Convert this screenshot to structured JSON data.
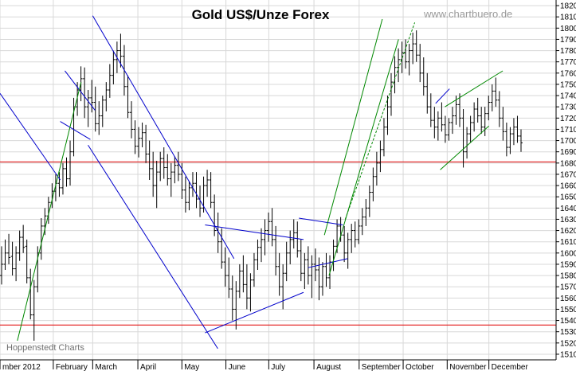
{
  "chart_data": {
    "type": "ohlc",
    "title": "Gold US$/Unze Forex",
    "watermark": "www.chartbuero.de",
    "source": "Hoppenstedt Charts",
    "ylim": [
      1505,
      1825
    ],
    "y_ticks": [
      1510,
      1520,
      1530,
      1540,
      1550,
      1560,
      1570,
      1580,
      1590,
      1600,
      1610,
      1620,
      1630,
      1640,
      1650,
      1660,
      1670,
      1680,
      1690,
      1700,
      1710,
      1720,
      1730,
      1740,
      1750,
      1760,
      1770,
      1780,
      1790,
      1800,
      1810,
      1820
    ],
    "x_domain": [
      0,
      24
    ],
    "x_months": [
      {
        "label": "mber 2012",
        "x": 0
      },
      {
        "label": "February",
        "x": 2.3
      },
      {
        "label": "March",
        "x": 4.0
      },
      {
        "label": "April",
        "x": 5.95
      },
      {
        "label": "May",
        "x": 7.85
      },
      {
        "label": "June",
        "x": 9.75
      },
      {
        "label": "July",
        "x": 11.6
      },
      {
        "label": "August",
        "x": 13.55
      },
      {
        "label": "September",
        "x": 15.5
      },
      {
        "label": "October",
        "x": 17.4
      },
      {
        "label": "November",
        "x": 19.3
      },
      {
        "label": "December",
        "x": 21.1
      }
    ],
    "horizontal_lines": [
      {
        "name": "resistance-line",
        "y": 1681,
        "color": "#e00000"
      },
      {
        "name": "support-line",
        "y": 1536,
        "color": "#e00000"
      }
    ],
    "trendlines": [
      {
        "color": "#0000cc",
        "dash": false,
        "from": [
          0,
          1742
        ],
        "to": [
          2.6,
          1665
        ]
      },
      {
        "color": "#0000cc",
        "dash": false,
        "from": [
          4.0,
          1811
        ],
        "to": [
          10.1,
          1595
        ]
      },
      {
        "color": "#0000cc",
        "dash": false,
        "from": [
          3.8,
          1696
        ],
        "to": [
          9.4,
          1515
        ]
      },
      {
        "color": "#0000cc",
        "dash": false,
        "from": [
          2.8,
          1762
        ],
        "to": [
          4.1,
          1727
        ]
      },
      {
        "color": "#0000cc",
        "dash": false,
        "from": [
          2.6,
          1717
        ],
        "to": [
          3.9,
          1701
        ]
      },
      {
        "color": "#0000cc",
        "dash": false,
        "from": [
          8.85,
          1625
        ],
        "to": [
          13.1,
          1612
        ]
      },
      {
        "color": "#0000cc",
        "dash": false,
        "from": [
          8.85,
          1529
        ],
        "to": [
          13.1,
          1565
        ]
      },
      {
        "color": "#0000cc",
        "dash": false,
        "from": [
          12.9,
          1631
        ],
        "to": [
          14.8,
          1625
        ]
      },
      {
        "color": "#0000cc",
        "dash": false,
        "from": [
          13.3,
          1587
        ],
        "to": [
          15.0,
          1595
        ]
      },
      {
        "color": "#0000cc",
        "dash": false,
        "from": [
          18.8,
          1733
        ],
        "to": [
          19.4,
          1746
        ]
      },
      {
        "color": "#008800",
        "dash": false,
        "from": [
          0.75,
          1522
        ],
        "to": [
          3.5,
          1752
        ]
      },
      {
        "color": "#008800",
        "dash": false,
        "from": [
          14.0,
          1616
        ],
        "to": [
          16.5,
          1808
        ]
      },
      {
        "color": "#008800",
        "dash": false,
        "from": [
          14.2,
          1580
        ],
        "to": [
          17.2,
          1790
        ]
      },
      {
        "color": "#008800",
        "dash": true,
        "from": [
          14.9,
          1630
        ],
        "to": [
          17.9,
          1805
        ]
      },
      {
        "color": "#008800",
        "dash": false,
        "from": [
          19.0,
          1674
        ],
        "to": [
          21.1,
          1713
        ]
      },
      {
        "color": "#008800",
        "dash": false,
        "from": [
          19.2,
          1730
        ],
        "to": [
          21.7,
          1762
        ]
      }
    ],
    "bars": [
      [
        1580,
        1606,
        1572,
        1590
      ],
      [
        1590,
        1612,
        1585,
        1600
      ],
      [
        1600,
        1617,
        1590,
        1596
      ],
      [
        1597,
        1610,
        1580,
        1586
      ],
      [
        1586,
        1606,
        1575,
        1600
      ],
      [
        1600,
        1620,
        1593,
        1614
      ],
      [
        1614,
        1625,
        1600,
        1605
      ],
      [
        1606,
        1612,
        1573,
        1578
      ],
      [
        1578,
        1586,
        1541,
        1545
      ],
      [
        1545,
        1576,
        1522,
        1570
      ],
      [
        1570,
        1606,
        1565,
        1600
      ],
      [
        1600,
        1631,
        1594,
        1624
      ],
      [
        1624,
        1640,
        1616,
        1633
      ],
      [
        1633,
        1650,
        1626,
        1645
      ],
      [
        1645,
        1662,
        1640,
        1655
      ],
      [
        1655,
        1670,
        1646,
        1662
      ],
      [
        1662,
        1672,
        1650,
        1658
      ],
      [
        1658,
        1680,
        1652,
        1675
      ],
      [
        1675,
        1685,
        1659,
        1666
      ],
      [
        1666,
        1700,
        1660,
        1690
      ],
      [
        1690,
        1738,
        1686,
        1730
      ],
      [
        1730,
        1752,
        1722,
        1745
      ],
      [
        1745,
        1766,
        1735,
        1755
      ],
      [
        1755,
        1765,
        1720,
        1730
      ],
      [
        1730,
        1745,
        1712,
        1738
      ],
      [
        1738,
        1754,
        1725,
        1734
      ],
      [
        1734,
        1748,
        1708,
        1715
      ],
      [
        1715,
        1735,
        1705,
        1722
      ],
      [
        1722,
        1740,
        1712,
        1736
      ],
      [
        1736,
        1752,
        1726,
        1745
      ],
      [
        1745,
        1768,
        1738,
        1758
      ],
      [
        1758,
        1780,
        1750,
        1772
      ],
      [
        1772,
        1788,
        1760,
        1780
      ],
      [
        1780,
        1795,
        1765,
        1775
      ],
      [
        1775,
        1785,
        1740,
        1748
      ],
      [
        1748,
        1758,
        1720,
        1725
      ],
      [
        1725,
        1735,
        1702,
        1710
      ],
      [
        1710,
        1718,
        1688,
        1695
      ],
      [
        1695,
        1712,
        1685,
        1702
      ],
      [
        1702,
        1716,
        1694,
        1707
      ],
      [
        1707,
        1714,
        1680,
        1688
      ],
      [
        1688,
        1700,
        1665,
        1675
      ],
      [
        1675,
        1690,
        1650,
        1660
      ],
      [
        1660,
        1682,
        1640,
        1672
      ],
      [
        1672,
        1690,
        1664,
        1684
      ],
      [
        1684,
        1694,
        1666,
        1676
      ],
      [
        1676,
        1688,
        1660,
        1666
      ],
      [
        1666,
        1680,
        1650,
        1672
      ],
      [
        1672,
        1686,
        1662,
        1678
      ],
      [
        1678,
        1690,
        1664,
        1670
      ],
      [
        1670,
        1680,
        1648,
        1656
      ],
      [
        1656,
        1668,
        1636,
        1645
      ],
      [
        1645,
        1664,
        1638,
        1658
      ],
      [
        1658,
        1672,
        1650,
        1662
      ],
      [
        1662,
        1672,
        1640,
        1648
      ],
      [
        1648,
        1660,
        1632,
        1640
      ],
      [
        1640,
        1668,
        1636,
        1660
      ],
      [
        1660,
        1674,
        1650,
        1665
      ],
      [
        1665,
        1672,
        1640,
        1645
      ],
      [
        1645,
        1652,
        1615,
        1620
      ],
      [
        1620,
        1636,
        1600,
        1610
      ],
      [
        1610,
        1622,
        1586,
        1592
      ],
      [
        1592,
        1605,
        1570,
        1580
      ],
      [
        1580,
        1596,
        1560,
        1568
      ],
      [
        1568,
        1580,
        1540,
        1550
      ],
      [
        1550,
        1575,
        1532,
        1566
      ],
      [
        1566,
        1590,
        1560,
        1584
      ],
      [
        1584,
        1598,
        1565,
        1572
      ],
      [
        1572,
        1590,
        1550,
        1560
      ],
      [
        1560,
        1582,
        1548,
        1576
      ],
      [
        1576,
        1600,
        1570,
        1594
      ],
      [
        1594,
        1612,
        1585,
        1605
      ],
      [
        1605,
        1622,
        1592,
        1612
      ],
      [
        1612,
        1630,
        1598,
        1620
      ],
      [
        1620,
        1636,
        1610,
        1628
      ],
      [
        1628,
        1640,
        1606,
        1612
      ],
      [
        1612,
        1624,
        1580,
        1588
      ],
      [
        1588,
        1600,
        1562,
        1570
      ],
      [
        1570,
        1590,
        1550,
        1582
      ],
      [
        1582,
        1610,
        1575,
        1600
      ],
      [
        1600,
        1620,
        1590,
        1612
      ],
      [
        1612,
        1630,
        1604,
        1618
      ],
      [
        1618,
        1628,
        1596,
        1602
      ],
      [
        1602,
        1612,
        1575,
        1582
      ],
      [
        1582,
        1600,
        1568,
        1594
      ],
      [
        1594,
        1606,
        1572,
        1580
      ],
      [
        1580,
        1598,
        1560,
        1590
      ],
      [
        1590,
        1604,
        1575,
        1585
      ],
      [
        1585,
        1596,
        1558,
        1570
      ],
      [
        1570,
        1592,
        1562,
        1588
      ],
      [
        1588,
        1600,
        1570,
        1578
      ],
      [
        1578,
        1598,
        1568,
        1592
      ],
      [
        1592,
        1612,
        1584,
        1606
      ],
      [
        1606,
        1630,
        1600,
        1624
      ],
      [
        1624,
        1632,
        1610,
        1616
      ],
      [
        1616,
        1624,
        1592,
        1600
      ],
      [
        1600,
        1618,
        1586,
        1612
      ],
      [
        1612,
        1626,
        1600,
        1620
      ],
      [
        1620,
        1628,
        1605,
        1612
      ],
      [
        1612,
        1630,
        1608,
        1624
      ],
      [
        1624,
        1640,
        1616,
        1632
      ],
      [
        1632,
        1648,
        1624,
        1640
      ],
      [
        1640,
        1660,
        1632,
        1654
      ],
      [
        1654,
        1676,
        1646,
        1668
      ],
      [
        1668,
        1690,
        1660,
        1680
      ],
      [
        1680,
        1700,
        1672,
        1692
      ],
      [
        1692,
        1720,
        1686,
        1712
      ],
      [
        1712,
        1740,
        1705,
        1730
      ],
      [
        1730,
        1760,
        1722,
        1752
      ],
      [
        1752,
        1775,
        1742,
        1765
      ],
      [
        1765,
        1782,
        1752,
        1772
      ],
      [
        1772,
        1788,
        1760,
        1778
      ],
      [
        1778,
        1790,
        1764,
        1770
      ],
      [
        1770,
        1786,
        1758,
        1780
      ],
      [
        1780,
        1796,
        1768,
        1786
      ],
      [
        1786,
        1798,
        1770,
        1776
      ],
      [
        1776,
        1786,
        1752,
        1760
      ],
      [
        1760,
        1774,
        1740,
        1748
      ],
      [
        1748,
        1760,
        1724,
        1730
      ],
      [
        1730,
        1742,
        1712,
        1718
      ],
      [
        1718,
        1730,
        1702,
        1712
      ],
      [
        1712,
        1726,
        1700,
        1720
      ],
      [
        1720,
        1734,
        1708,
        1714
      ],
      [
        1714,
        1722,
        1698,
        1705
      ],
      [
        1705,
        1720,
        1700,
        1716
      ],
      [
        1716,
        1730,
        1706,
        1722
      ],
      [
        1722,
        1740,
        1714,
        1732
      ],
      [
        1732,
        1742,
        1712,
        1720
      ],
      [
        1720,
        1728,
        1676,
        1690
      ],
      [
        1690,
        1712,
        1684,
        1706
      ],
      [
        1706,
        1722,
        1698,
        1716
      ],
      [
        1716,
        1734,
        1708,
        1728
      ],
      [
        1728,
        1738,
        1716,
        1722
      ],
      [
        1722,
        1730,
        1706,
        1712
      ],
      [
        1712,
        1730,
        1704,
        1724
      ],
      [
        1724,
        1740,
        1718,
        1734
      ],
      [
        1734,
        1750,
        1726,
        1744
      ],
      [
        1744,
        1756,
        1730,
        1736
      ],
      [
        1736,
        1744,
        1712,
        1720
      ],
      [
        1720,
        1730,
        1700,
        1708
      ],
      [
        1708,
        1716,
        1686,
        1694
      ],
      [
        1694,
        1712,
        1688,
        1706
      ],
      [
        1706,
        1720,
        1696,
        1712
      ],
      [
        1712,
        1722,
        1698,
        1704
      ],
      [
        1704,
        1710,
        1690,
        1698
      ]
    ]
  }
}
